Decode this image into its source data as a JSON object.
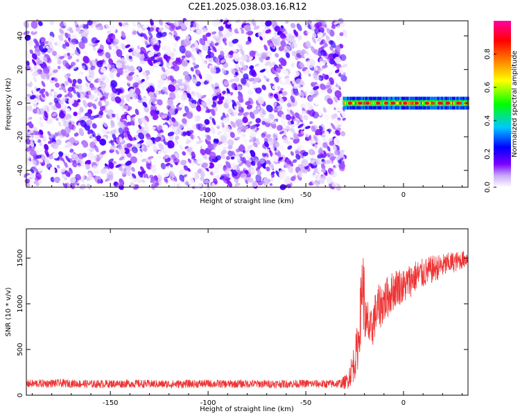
{
  "title": "C2E1.2025.038.03.16.R12",
  "chart_data": [
    {
      "type": "heatmap",
      "xlabel": "Height of straight line (km)",
      "ylabel": "Frequency (Hz)",
      "xlim": [
        -193,
        33
      ],
      "ylim": [
        -50,
        49
      ],
      "x_ticks": [
        -150,
        -100,
        -50,
        0
      ],
      "y_ticks": [
        -40,
        -20,
        0,
        20,
        40
      ],
      "colorbar": {
        "label": "Normalized spectral amplitude",
        "range": [
          0,
          1
        ],
        "ticks": [
          0.0,
          0.2,
          0.4,
          0.6,
          0.8
        ],
        "colormap": [
          "#ffffff",
          "#c8a8f8",
          "#7a00ff",
          "#0000ff",
          "#00c8ff",
          "#00ff00",
          "#ffff00",
          "#ff8000",
          "#ff0000",
          "#ff00a0"
        ]
      },
      "regions": [
        {
          "x_range": [
            -193,
            -30
          ],
          "freq_range": [
            -50,
            49
          ],
          "description_amplitude": [
            0.0,
            0.2
          ]
        },
        {
          "x_range": [
            -31,
            33
          ],
          "center_freq": 0,
          "band_halfwidth_hz": 3,
          "description_amplitude": [
            0.3,
            0.95
          ]
        }
      ]
    },
    {
      "type": "line",
      "xlabel": "Height of straight line (km)",
      "ylabel": "SNR (10 * v/v)",
      "xlim": [
        -193,
        33
      ],
      "ylim": [
        0,
        1820
      ],
      "x_ticks": [
        -150,
        -100,
        -50,
        0
      ],
      "y_ticks": [
        0,
        500,
        1000,
        1500
      ],
      "color": "#ee3333",
      "series": [
        {
          "x": [
            -193,
            -180,
            -170,
            -160,
            -150,
            -140,
            -130,
            -120,
            -110,
            -100,
            -90,
            -80,
            -70,
            -60,
            -50,
            -40,
            -32,
            -29,
            -27,
            -25,
            -24,
            -23,
            -22,
            -21,
            -20,
            -19,
            -18,
            -17,
            -15,
            -13,
            -11,
            -9,
            -7,
            -5,
            -3,
            0,
            3,
            6,
            9,
            12,
            15,
            18,
            21,
            24,
            27,
            30,
            33
          ],
          "y": [
            125,
            130,
            128,
            122,
            125,
            127,
            123,
            120,
            124,
            126,
            122,
            125,
            123,
            124,
            126,
            122,
            128,
            150,
            250,
            380,
            480,
            600,
            900,
            1300,
            1000,
            700,
            800,
            650,
            850,
            950,
            1000,
            1050,
            1100,
            1150,
            1200,
            1180,
            1250,
            1300,
            1320,
            1350,
            1380,
            1400,
            1420,
            1450,
            1460,
            1480,
            1500
          ],
          "noise": [
            45,
            45,
            45,
            45,
            45,
            45,
            45,
            45,
            45,
            45,
            45,
            45,
            45,
            45,
            45,
            45,
            50,
            90,
            150,
            220,
            250,
            280,
            350,
            450,
            400,
            300,
            300,
            250,
            250,
            250,
            250,
            240,
            230,
            220,
            210,
            200,
            190,
            180,
            170,
            160,
            150,
            140,
            130,
            120,
            110,
            100,
            90
          ]
        }
      ]
    }
  ]
}
